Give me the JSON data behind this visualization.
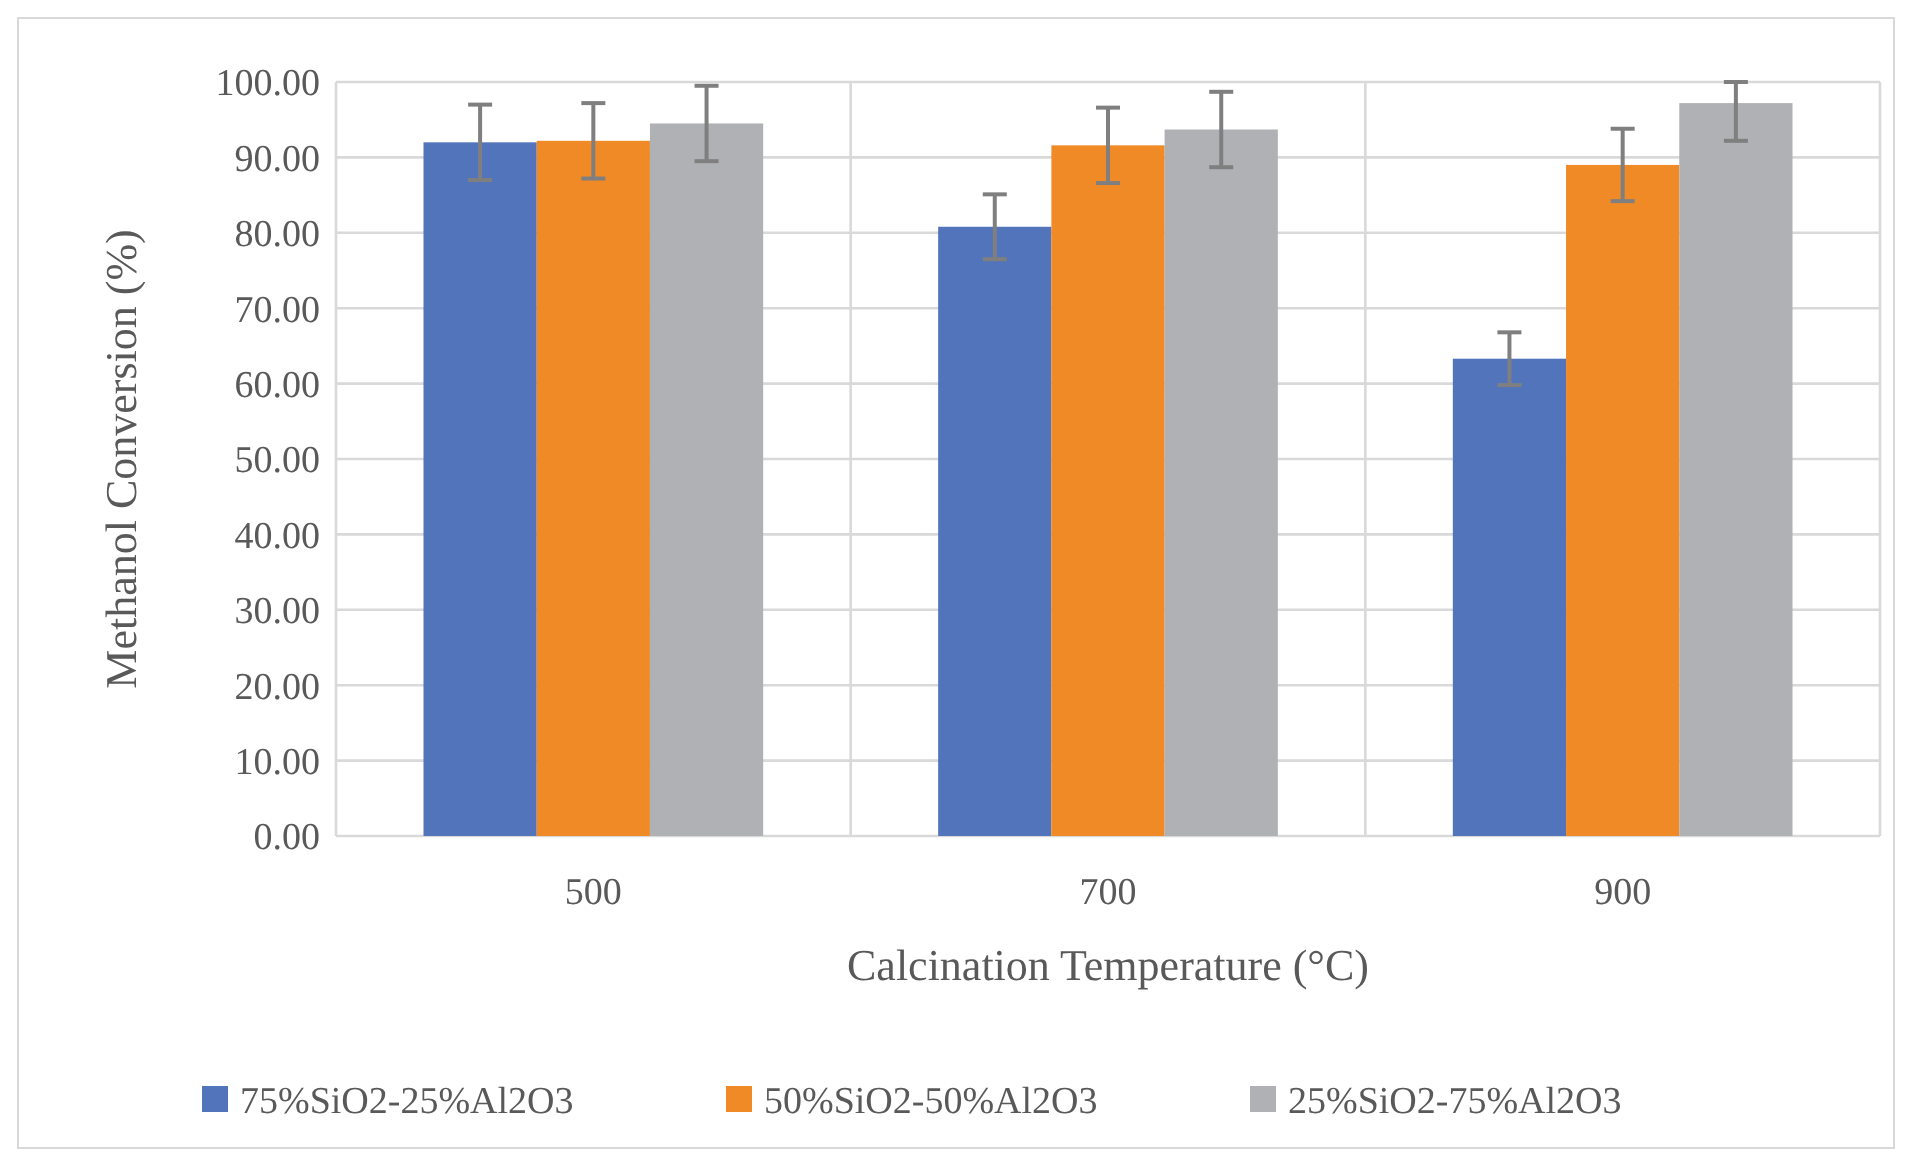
{
  "chart_data": {
    "type": "bar",
    "xlabel": "Calcination Temperature (°C)",
    "ylabel": "Methanol Conversion (%)",
    "categories": [
      "500",
      "700",
      "900"
    ],
    "series": [
      {
        "name": "75%SiO2-25%Al2O3",
        "color": "#5274bb",
        "values": [
          92.0,
          80.8,
          63.3
        ],
        "errors": [
          5.0,
          4.3,
          3.5
        ]
      },
      {
        "name": "50%SiO2-50%Al2O3",
        "color": "#f08a27",
        "values": [
          92.2,
          91.6,
          89.0
        ],
        "errors": [
          5.0,
          5.0,
          4.8
        ]
      },
      {
        "name": "25%SiO2-75%Al2O3",
        "color": "#b0b1b4",
        "values": [
          94.5,
          93.7,
          97.2
        ],
        "errors": [
          5.0,
          5.0,
          [
            92.2,
            100
          ]
        ]
      }
    ],
    "ylim": [
      0,
      100
    ],
    "yticks": [
      {
        "value": 0,
        "label": "0.00"
      },
      {
        "value": 10,
        "label": "10.00"
      },
      {
        "value": 20,
        "label": "20.00"
      },
      {
        "value": 30,
        "label": "30.00"
      },
      {
        "value": 40,
        "label": "40.00"
      },
      {
        "value": 50,
        "label": "50.00"
      },
      {
        "value": 60,
        "label": "60.00"
      },
      {
        "value": 70,
        "label": "70.00"
      },
      {
        "value": 80,
        "label": "80.00"
      },
      {
        "value": 90,
        "label": "90.00"
      },
      {
        "value": 100,
        "label": "100.00"
      }
    ],
    "grid": true,
    "legend": "bottom"
  }
}
